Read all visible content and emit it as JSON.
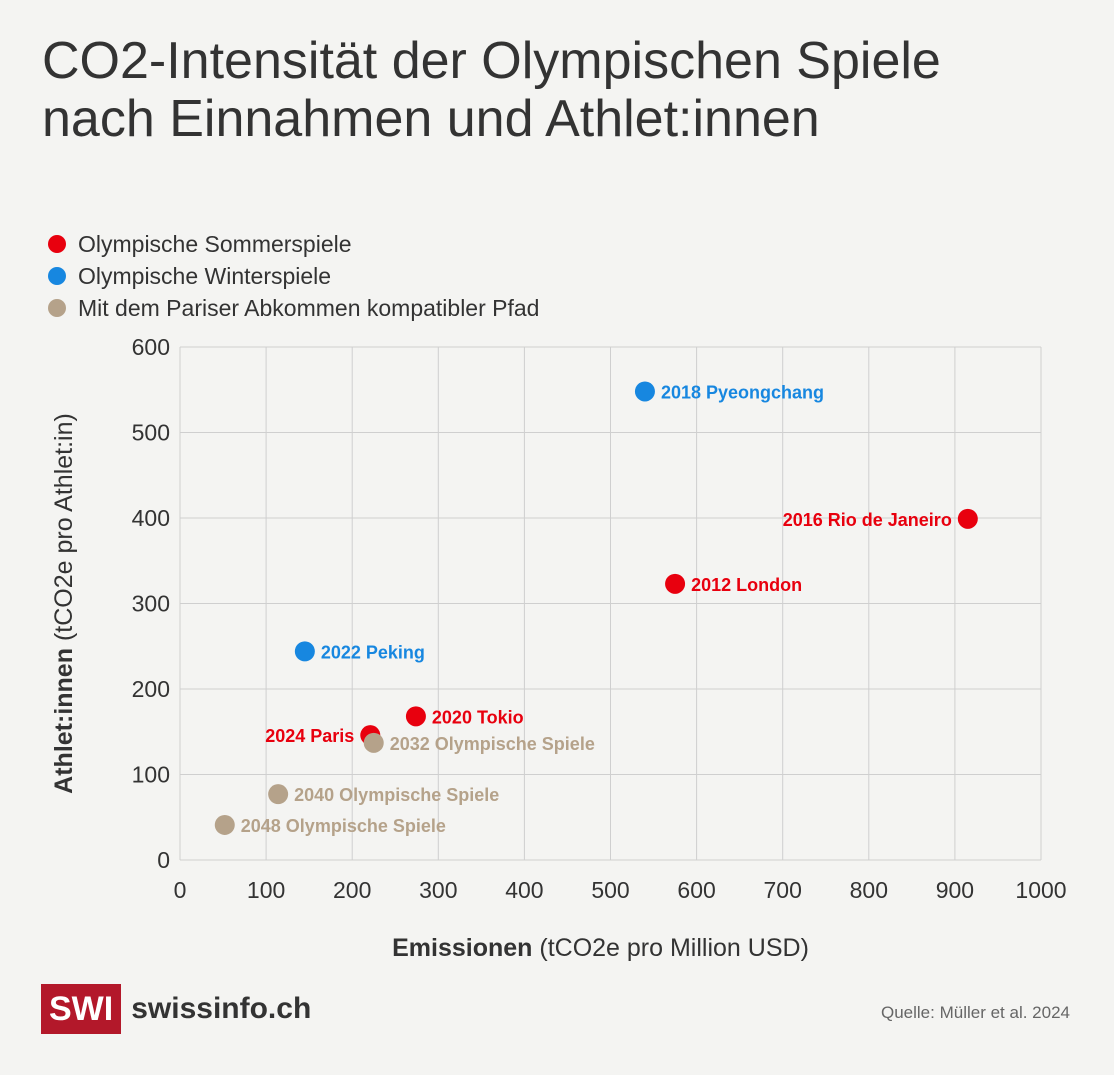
{
  "title": "CO2-Intensität der Olympischen Spiele nach Einnahmen und Athlet:innen",
  "legend": [
    {
      "label": "Olympische Sommerspiele",
      "color": "#e8000e"
    },
    {
      "label": "Olympische Winterspiele",
      "color": "#1787e0"
    },
    {
      "label": "Mit dem Pariser Abkommen kompatibler Pfad",
      "color": "#b5a28a"
    }
  ],
  "chart_data": {
    "type": "scatter",
    "xlabel_bold": "Emissionen",
    "xlabel_rest": " (tCO2e pro Million USD)",
    "ylabel_bold": "Athlet:innen",
    "ylabel_rest": " (tCO2e pro Athlet:in)",
    "xlim": [
      0,
      1000
    ],
    "ylim": [
      0,
      600
    ],
    "xticks": [
      0,
      100,
      200,
      300,
      400,
      500,
      600,
      700,
      800,
      900,
      1000
    ],
    "yticks": [
      0,
      100,
      200,
      300,
      400,
      500,
      600
    ],
    "grid": true,
    "legend_position": "top-left",
    "points": [
      {
        "label": "2018 Pyeongchang",
        "x": 540,
        "y": 548,
        "group": 1,
        "label_side": "right"
      },
      {
        "label": "2016 Rio de Janeiro",
        "x": 915,
        "y": 399,
        "group": 0,
        "label_side": "left"
      },
      {
        "label": "2012 London",
        "x": 575,
        "y": 323,
        "group": 0,
        "label_side": "right"
      },
      {
        "label": "2022 Peking",
        "x": 145,
        "y": 244,
        "group": 1,
        "label_side": "right"
      },
      {
        "label": "2020 Tokio",
        "x": 274,
        "y": 168,
        "group": 0,
        "label_side": "right"
      },
      {
        "label": "2024 Paris",
        "x": 221,
        "y": 146,
        "group": 0,
        "label_side": "left"
      },
      {
        "label": "2032 Olympische Spiele",
        "x": 225,
        "y": 137,
        "group": 2,
        "label_side": "right"
      },
      {
        "label": "2040 Olympische Spiele",
        "x": 114,
        "y": 77,
        "group": 2,
        "label_side": "right"
      },
      {
        "label": "2048 Olympische Spiele",
        "x": 52,
        "y": 41,
        "group": 2,
        "label_side": "right"
      }
    ]
  },
  "footer": {
    "logo_box": "SWI",
    "logo_text": "swissinfo.ch",
    "source": "Quelle: Müller et al. 2024"
  }
}
